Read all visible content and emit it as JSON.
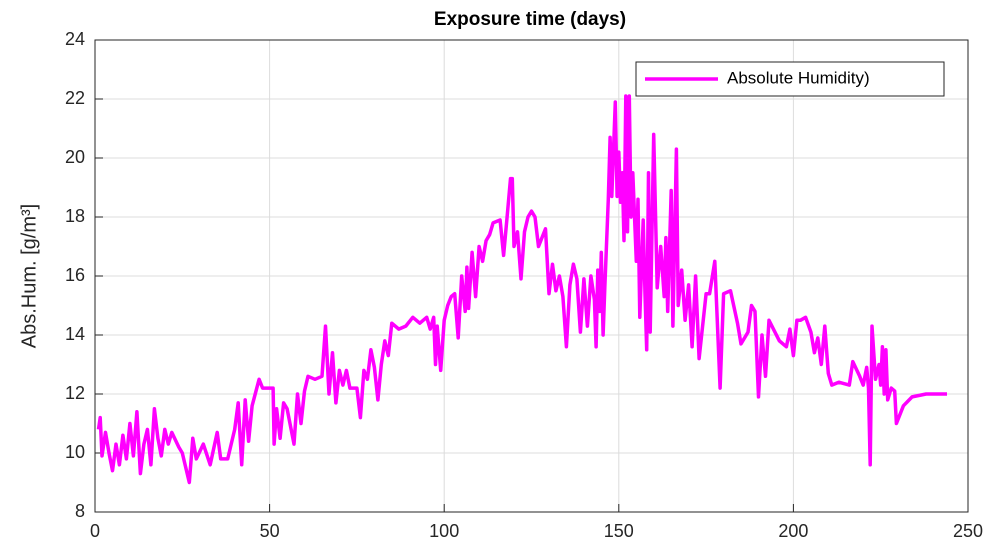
{
  "chart_data": {
    "type": "line",
    "title": "Exposure time (days)",
    "y_label": "Abs.Hum. [g/m³]",
    "x": [
      1,
      1.5,
      2,
      3,
      4,
      5,
      6,
      7,
      8,
      9,
      10,
      11,
      12,
      13,
      14,
      15,
      16,
      17,
      18,
      19,
      20,
      21,
      22,
      24,
      25,
      27,
      28,
      29,
      31,
      33,
      35,
      36,
      38,
      40,
      41,
      42,
      43,
      44,
      45,
      47,
      48,
      50,
      51,
      51.3,
      52,
      53,
      54,
      55,
      57,
      58,
      59,
      60,
      61,
      63,
      65,
      66,
      67,
      68,
      69,
      70,
      71,
      72,
      73,
      75,
      76,
      77,
      78,
      79,
      80,
      81,
      82,
      83,
      84,
      85,
      87,
      89,
      91,
      93,
      95,
      96,
      97,
      97.5,
      98,
      99,
      100,
      101,
      102,
      103,
      104,
      105,
      106,
      106.5,
      107,
      108,
      109,
      110,
      111,
      112,
      113,
      114,
      116,
      117,
      118,
      119,
      119.5,
      120,
      121,
      122,
      123,
      124,
      125,
      126,
      127,
      128,
      129,
      130,
      131,
      132,
      133,
      134,
      135,
      136,
      137,
      138,
      139,
      140,
      141,
      142,
      143,
      143.5,
      144,
      144.5,
      145,
      145.5,
      146,
      147,
      147.5,
      148,
      149,
      149.5,
      150,
      150.5,
      151,
      151.5,
      152,
      152.5,
      153,
      153.5,
      154,
      155,
      155.5,
      156,
      157,
      157.5,
      158,
      158.5,
      159,
      160,
      161,
      162,
      163,
      163.5,
      164,
      165,
      165.5,
      166.5,
      167,
      168,
      169,
      170,
      171,
      172,
      173,
      175,
      176,
      177.5,
      179,
      180,
      182,
      184,
      185,
      187,
      188,
      189,
      190,
      191,
      192,
      193,
      196,
      198,
      199,
      200,
      201,
      202,
      203.5,
      205,
      206,
      207,
      208,
      209,
      210,
      211,
      213,
      216,
      217,
      219,
      220,
      221,
      221.5,
      222,
      222.5,
      223.5,
      224.5,
      225,
      225.5,
      226,
      226.5,
      227,
      228,
      229,
      229.5,
      231.5,
      234,
      238,
      244
    ],
    "series": [
      {
        "name": "Absolute Humidity)",
        "color": "#ff00ff",
        "values": [
          10.8,
          11.2,
          9.9,
          10.7,
          10.0,
          9.4,
          10.3,
          9.6,
          10.6,
          9.8,
          11.0,
          9.9,
          11.4,
          9.3,
          10.3,
          10.8,
          9.6,
          11.5,
          10.5,
          9.9,
          10.8,
          10.3,
          10.7,
          10.2,
          10.0,
          9.0,
          10.5,
          9.8,
          10.3,
          9.6,
          10.7,
          9.8,
          9.8,
          10.8,
          11.7,
          9.6,
          11.8,
          10.4,
          11.6,
          12.5,
          12.2,
          12.2,
          12.2,
          10.3,
          11.5,
          10.5,
          11.7,
          11.5,
          10.3,
          12.0,
          11.0,
          12.1,
          12.6,
          12.5,
          12.6,
          14.3,
          12.0,
          13.4,
          11.7,
          12.8,
          12.3,
          12.8,
          12.2,
          12.2,
          11.2,
          12.8,
          12.5,
          13.5,
          12.9,
          11.8,
          13.0,
          13.8,
          13.3,
          14.4,
          14.2,
          14.3,
          14.6,
          14.4,
          14.6,
          14.2,
          14.6,
          13.0,
          14.3,
          12.8,
          14.5,
          15.0,
          15.3,
          15.4,
          13.9,
          16.0,
          14.8,
          16.3,
          14.9,
          16.8,
          15.3,
          17.0,
          16.5,
          17.2,
          17.4,
          17.8,
          17.9,
          16.7,
          18.0,
          19.3,
          19.3,
          17.0,
          17.5,
          15.9,
          17.5,
          18.0,
          18.2,
          18.0,
          17.0,
          17.3,
          17.6,
          15.4,
          16.4,
          15.5,
          16.0,
          15.3,
          13.6,
          15.7,
          16.4,
          15.9,
          14.1,
          15.9,
          14.3,
          16.0,
          15.2,
          13.6,
          16.2,
          14.8,
          16.8,
          14.0,
          15.6,
          18.6,
          20.7,
          18.7,
          21.9,
          18.7,
          20.2,
          18.5,
          19.5,
          17.2,
          22.1,
          17.5,
          22.1,
          18.0,
          19.5,
          16.5,
          18.6,
          14.6,
          17.9,
          15.4,
          13.5,
          19.5,
          14.1,
          20.8,
          15.6,
          17.0,
          15.3,
          17.3,
          14.8,
          18.9,
          14.3,
          20.3,
          15.0,
          16.2,
          14.5,
          15.7,
          13.6,
          16.0,
          13.2,
          15.4,
          15.4,
          16.5,
          12.2,
          15.4,
          15.5,
          14.4,
          13.7,
          14.1,
          15.0,
          14.8,
          11.9,
          14.0,
          12.6,
          14.5,
          13.8,
          13.6,
          14.2,
          13.3,
          14.5,
          14.5,
          14.6,
          14.1,
          13.4,
          13.9,
          13.0,
          14.3,
          12.7,
          12.3,
          12.4,
          12.3,
          13.1,
          12.6,
          12.3,
          12.9,
          12.2,
          9.6,
          14.3,
          12.5,
          13.0,
          12.3,
          13.6,
          12.0,
          13.5,
          11.8,
          12.2,
          12.1,
          11.0,
          11.6,
          11.9,
          12.0,
          12.0
        ]
      }
    ],
    "xlim": [
      0,
      250
    ],
    "xticks": [
      0,
      50,
      100,
      150,
      200,
      250
    ],
    "ylim": [
      8,
      24
    ],
    "yticks": [
      8,
      10,
      12,
      14,
      16,
      18,
      20,
      22,
      24
    ],
    "grid": true,
    "legend": "northeast"
  }
}
